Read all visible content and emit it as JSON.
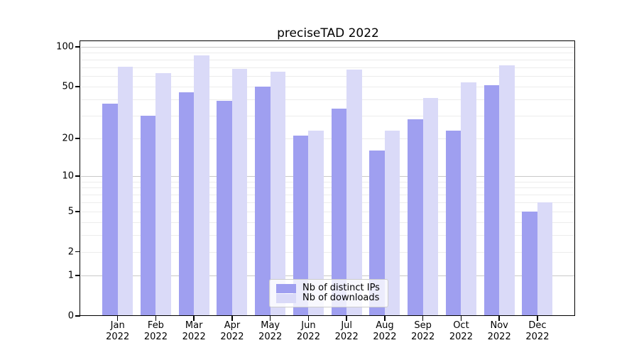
{
  "figure": {
    "title": "preciseTAD 2022",
    "background": "#ffffff"
  },
  "chart_data": {
    "type": "bar",
    "title": "preciseTAD 2022",
    "categories": [
      "Jan 2022",
      "Feb 2022",
      "Mar 2022",
      "Apr 2022",
      "May 2022",
      "Jun 2022",
      "Jul 2022",
      "Aug 2022",
      "Sep 2022",
      "Oct 2022",
      "Nov 2022",
      "Dec 2022"
    ],
    "series": [
      {
        "name": "Nb of distinct IPs",
        "color": "#9f9ff0",
        "values": [
          37,
          30,
          45,
          39,
          50,
          21,
          34,
          16,
          28,
          23,
          51,
          5
        ]
      },
      {
        "name": "Nb of downloads",
        "color": "#dadaf8",
        "values": [
          71,
          63,
          86,
          68,
          65,
          23,
          67,
          23,
          41,
          54,
          72,
          6
        ]
      }
    ],
    "xlabel": "",
    "ylabel": "",
    "yscale": "symlog: y position proportional to log10(1+value)",
    "ylim": [
      0,
      110
    ],
    "yticks": [
      0,
      1,
      2,
      5,
      10,
      20,
      50,
      100
    ],
    "grid": {
      "major_ticks": [
        1,
        10,
        100
      ],
      "minor_ticks": [
        2,
        3,
        4,
        5,
        6,
        7,
        8,
        9,
        20,
        30,
        40,
        50,
        60,
        70,
        80,
        90
      ],
      "major_color": "#c9c9c9",
      "minor_color": "#ececec"
    },
    "legend": {
      "entries": [
        "Nb of distinct IPs",
        "Nb of downloads"
      ],
      "position": "lower center inside plot"
    },
    "spine_color": "#000000",
    "text_color": "#000000"
  }
}
